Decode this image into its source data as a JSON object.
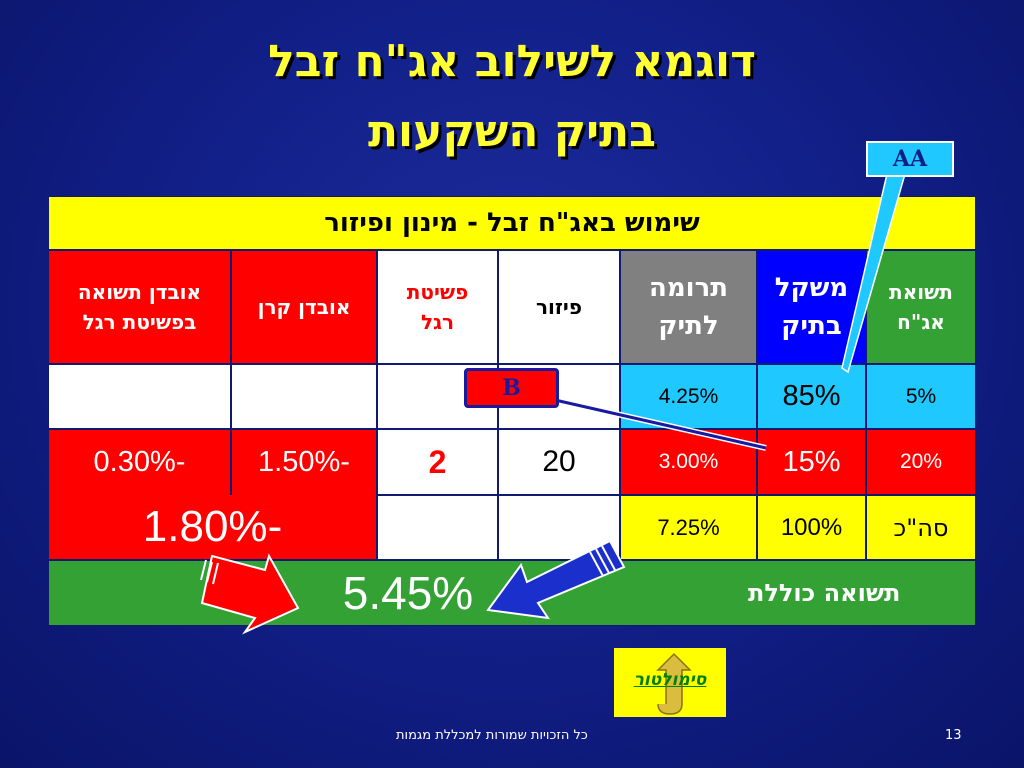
{
  "slide": {
    "title_line1": "דוגמא לשילוב אג\"ח זבל",
    "title_line2": "בתיק השקעות",
    "page_number": "13",
    "footer": "כל הזכויות שמורות למכללת מגמות"
  },
  "table": {
    "banner": "שימוש באג\"ח זבל - מינון ופיזור",
    "headers": {
      "loss_default_return": "אובדן תשואה בפשיטת רגל",
      "principal_loss": "אובדן קרן",
      "default": "פשיטת רגל",
      "diversification": "פיזור",
      "portfolio_contribution": "תרומה לתיק",
      "portfolio_weight": "משקל בתיק",
      "bond_return": "תשואת אג\"ח"
    },
    "row1": {
      "contribution": "4.25%",
      "weight": "85%",
      "bond_return": "5%"
    },
    "row2": {
      "loss_default_return": "-0.30%",
      "principal_loss": "-1.50%",
      "default": "2",
      "diversification": "20",
      "contribution": "3.00%",
      "weight": "15%",
      "bond_return": "20%"
    },
    "row3": {
      "loss_total": "-1.80%",
      "contribution": "7.25%",
      "weight": "100%",
      "label": "סה\"כ"
    },
    "total": {
      "value": "5.45%",
      "label": "תשואה כוללת"
    }
  },
  "callouts": {
    "aa": "AA",
    "b": "B"
  },
  "simulator": {
    "label": "סימולטור"
  },
  "colors": {
    "title": "#ffff33",
    "background": "#12208a",
    "red": "#ff0000",
    "yellow": "#ffff00",
    "green": "#33a133",
    "cyan": "#1fc8ff",
    "blue": "#0000ff",
    "grey": "#808080"
  }
}
